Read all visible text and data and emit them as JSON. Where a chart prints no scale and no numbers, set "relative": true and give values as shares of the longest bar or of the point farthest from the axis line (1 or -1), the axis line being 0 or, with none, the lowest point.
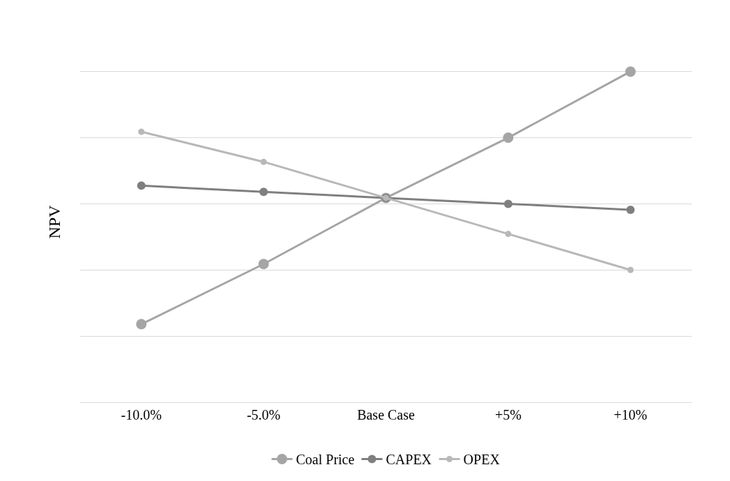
{
  "chart_data": {
    "type": "line",
    "ylabel": "NPV",
    "relative": true,
    "categories": [
      "-10.0%",
      "-5.0%",
      "Base Case",
      "+5%",
      "+10%"
    ],
    "series": [
      {
        "name": "Coal Price",
        "color": "#a5a5a5",
        "values": [
          0.236,
          0.418,
          0.618,
          0.8,
          1
        ]
      },
      {
        "name": "CAPEX",
        "color": "#7f7f7f",
        "values": [
          0.655,
          0.636,
          0.618,
          0.6,
          0.582
        ]
      },
      {
        "name": "OPEX",
        "color": "#b8b8b8",
        "values": [
          0.818,
          0.727,
          0.618,
          0.509,
          0.4
        ]
      }
    ],
    "grid": "y",
    "legend": "bottom",
    "marker": "circle",
    "line_style": "solid"
  }
}
